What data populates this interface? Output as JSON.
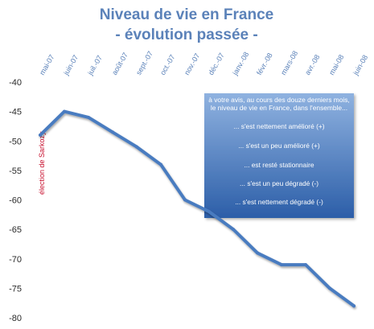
{
  "chart_data": {
    "type": "line",
    "title": [
      "Niveau de vie en France",
      "- évolution passée -"
    ],
    "categories": [
      "mai-07",
      "juin-07",
      "juil.-07",
      "août-07",
      "sept.-07",
      "oct.-07",
      "nov.-07",
      "déc.-07",
      "janv.-08",
      "févr.-08",
      "mars-08",
      "avr.-08",
      "mai-08",
      "juin-08"
    ],
    "series": [
      {
        "values": [
          -49,
          -45,
          -46,
          -48.5,
          -51,
          -54,
          -60,
          -62,
          -65,
          -69,
          -71,
          -71,
          -75,
          -78
        ]
      }
    ],
    "ylim": [
      -80,
      -40
    ],
    "yticks": [
      -40,
      -45,
      -50,
      -55,
      -60,
      -65,
      -70,
      -75,
      -80
    ],
    "grid": false,
    "line_color": "#4a7bc0",
    "annotation": {
      "text": "élection de Sarkozy",
      "category": "mai-07",
      "color": "#c8102e"
    },
    "info_box": {
      "lines": [
        "à votre avis, au cours des douze derniers mois,",
        "le niveau de vie en France, dans l'ensemble...",
        "... s'est nettement amélioré (+)",
        "... s'est un peu amélioré (+)",
        "... est resté stationnaire",
        "... s'est un peu dégradé (-)",
        "... s'est nettement dégradé (-)"
      ],
      "color_top": "#8fb2e0",
      "color_bottom": "#2c5ea8"
    }
  }
}
